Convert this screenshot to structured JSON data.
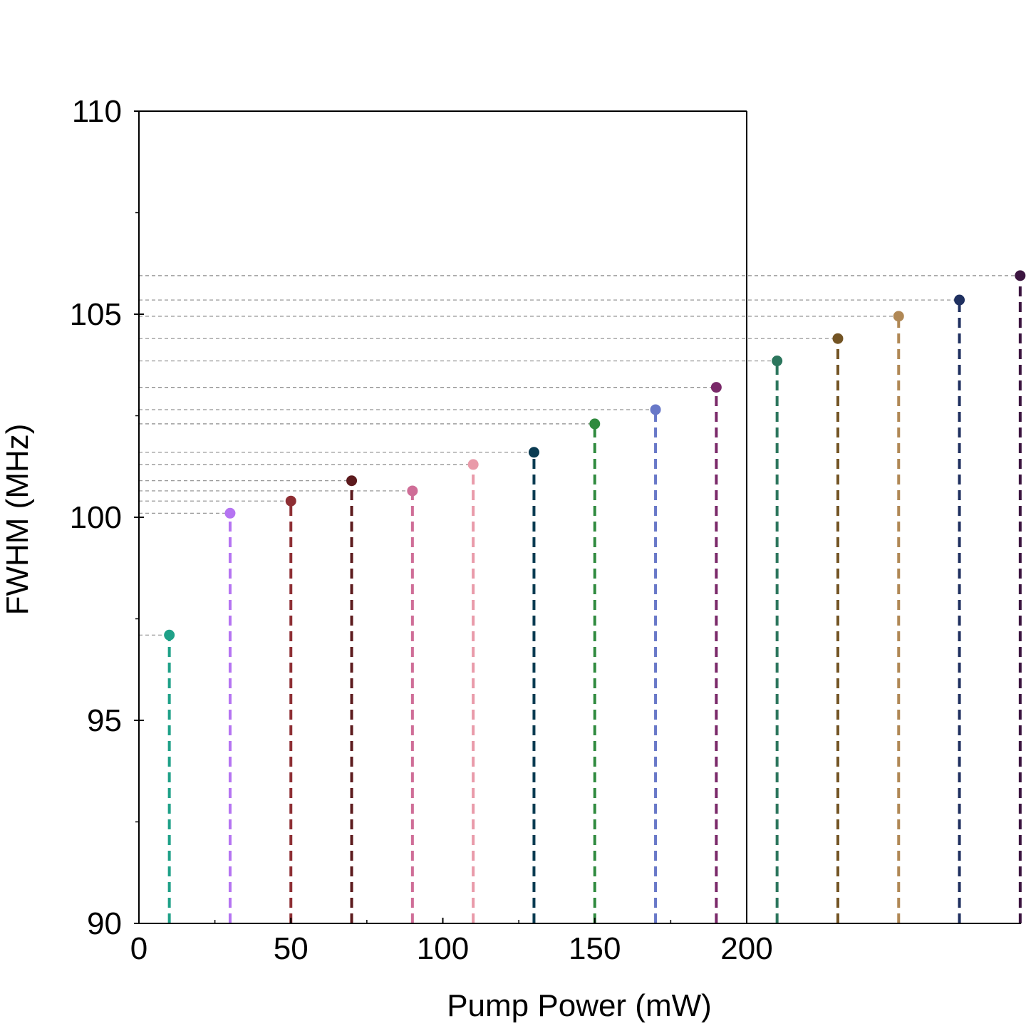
{
  "chart_data": {
    "type": "scatter",
    "style": "lollipop-stems",
    "xlabel": "Pump Power (mW)",
    "ylabel": "FWHM (MHz)",
    "xlim": [
      0,
      290
    ],
    "ylim": [
      90,
      110
    ],
    "xticks": [
      0,
      50,
      100,
      150,
      200
    ],
    "yticks": [
      90,
      95,
      100,
      105,
      110
    ],
    "grid": false,
    "reference_lines": "dashed gray horizontal line from y-axis to each point",
    "points": [
      {
        "x": 10,
        "y": 97.1,
        "color": "#1fa188"
      },
      {
        "x": 30,
        "y": 100.1,
        "color": "#b574f2"
      },
      {
        "x": 50,
        "y": 100.4,
        "color": "#8e2e33"
      },
      {
        "x": 70,
        "y": 100.9,
        "color": "#5c1a1d"
      },
      {
        "x": 90,
        "y": 100.65,
        "color": "#cf6d97"
      },
      {
        "x": 110,
        "y": 101.3,
        "color": "#e99aa9"
      },
      {
        "x": 130,
        "y": 101.6,
        "color": "#0a3b52"
      },
      {
        "x": 150,
        "y": 102.3,
        "color": "#2f8a3e"
      },
      {
        "x": 170,
        "y": 102.65,
        "color": "#6878c8"
      },
      {
        "x": 190,
        "y": 103.2,
        "color": "#7a2969"
      },
      {
        "x": 210,
        "y": 103.85,
        "color": "#2c765d"
      },
      {
        "x": 230,
        "y": 104.4,
        "color": "#735424"
      },
      {
        "x": 250,
        "y": 104.95,
        "color": "#b08855"
      },
      {
        "x": 270,
        "y": 105.35,
        "color": "#1f3060"
      },
      {
        "x": 290,
        "y": 105.95,
        "color": "#3c1540"
      }
    ]
  }
}
